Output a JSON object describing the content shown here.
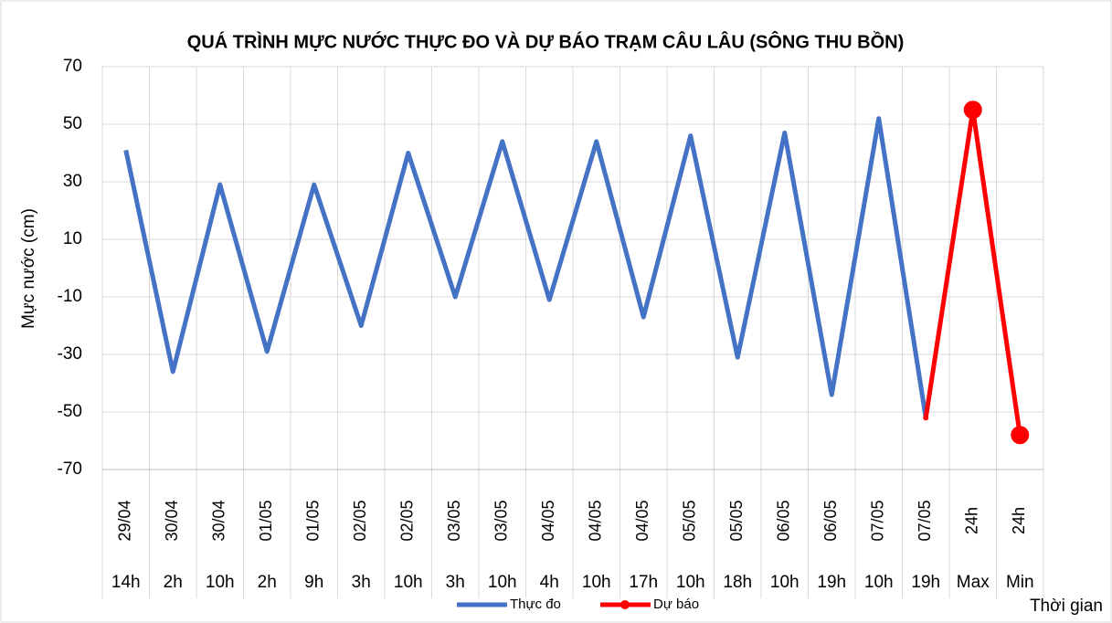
{
  "chart_data": {
    "type": "line",
    "title": "QUÁ TRÌNH MỰC NƯỚC THỰC ĐO VÀ DỰ BÁO TRẠM CÂU LÂU (SÔNG THU BỒN)",
    "y_label": "Mực nước (cm)",
    "x_label": "Thời gian",
    "dates": [
      "29/04",
      "30/04",
      "30/04",
      "01/05",
      "01/05",
      "02/05",
      "02/05",
      "03/05",
      "03/05",
      "04/05",
      "04/05",
      "04/05",
      "05/05",
      "05/05",
      "06/05",
      "06/05",
      "07/05",
      "07/05",
      "24h",
      "24h"
    ],
    "categories": [
      "14h",
      "2h",
      "10h",
      "2h",
      "9h",
      "3h",
      "10h",
      "3h",
      "10h",
      "4h",
      "10h",
      "17h",
      "10h",
      "18h",
      "10h",
      "19h",
      "10h",
      "19h",
      "Max",
      "Min"
    ],
    "series": [
      {
        "name": "Thực đo",
        "color": "#4472c4",
        "marker": false,
        "values": [
          41,
          -36,
          29,
          -29,
          29,
          -20,
          40,
          -10,
          44,
          -11,
          44,
          -17,
          46,
          -31,
          47,
          -44,
          52,
          -52,
          null,
          null
        ]
      },
      {
        "name": "Dự báo",
        "color": "#ff0000",
        "marker": true,
        "values": [
          null,
          null,
          null,
          null,
          null,
          null,
          null,
          null,
          null,
          null,
          null,
          null,
          null,
          null,
          null,
          null,
          null,
          -52,
          55,
          -58
        ]
      }
    ],
    "ylim": [
      -70,
      70
    ],
    "yticks": [
      -70,
      -50,
      -30,
      -10,
      10,
      30,
      50,
      70
    ],
    "grid": true,
    "legend": "bottom"
  }
}
